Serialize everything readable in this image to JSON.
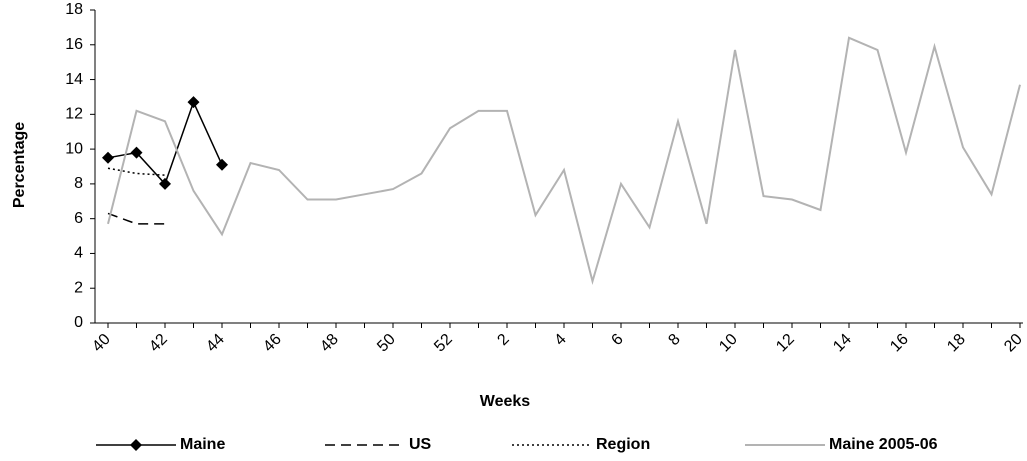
{
  "chart_data": {
    "type": "line",
    "xlabel": "Weeks",
    "ylabel": "Percentage",
    "categories": [
      "40",
      null,
      "42",
      null,
      "44",
      null,
      "46",
      null,
      "48",
      null,
      "50",
      null,
      "52",
      null,
      "2",
      null,
      "4",
      null,
      "6",
      null,
      "8",
      null,
      "10",
      null,
      "12",
      null,
      "14",
      null,
      "16",
      null,
      "18",
      null,
      "20"
    ],
    "series": [
      {
        "name": "Maine",
        "color": "#000000",
        "dash": "solid",
        "marker": "diamond",
        "values": [
          9.5,
          9.8,
          8.0,
          12.7,
          9.1,
          null,
          null,
          null,
          null,
          null,
          null,
          null,
          null,
          null,
          null,
          null,
          null,
          null,
          null,
          null,
          null,
          null,
          null,
          null,
          null,
          null,
          null,
          null,
          null,
          null,
          null,
          null,
          null
        ]
      },
      {
        "name": "US",
        "color": "#000000",
        "dash": "dashed",
        "values": [
          6.3,
          5.7,
          5.7,
          null,
          null,
          null,
          null,
          null,
          null,
          null,
          null,
          null,
          null,
          null,
          null,
          null,
          null,
          null,
          null,
          null,
          null,
          null,
          null,
          null,
          null,
          null,
          null,
          null,
          null,
          null,
          null,
          null,
          null
        ]
      },
      {
        "name": "Region",
        "color": "#000000",
        "dash": "dotted",
        "values": [
          8.9,
          8.6,
          8.5,
          null,
          null,
          null,
          null,
          null,
          null,
          null,
          null,
          null,
          null,
          null,
          null,
          null,
          null,
          null,
          null,
          null,
          null,
          null,
          null,
          null,
          null,
          null,
          null,
          null,
          null,
          null,
          null,
          null,
          null
        ]
      },
      {
        "name": "Maine 2005-06",
        "color": "#b3b3b3",
        "dash": "solid",
        "values": [
          5.7,
          12.2,
          11.6,
          7.6,
          5.1,
          9.2,
          8.8,
          7.1,
          7.1,
          7.4,
          7.7,
          8.6,
          11.2,
          12.2,
          12.2,
          6.2,
          8.8,
          2.4,
          8.0,
          5.5,
          11.6,
          5.7,
          15.7,
          7.3,
          7.1,
          6.5,
          16.4,
          15.7,
          9.8,
          15.9,
          10.1,
          7.4,
          13.7
        ]
      }
    ],
    "ylim": [
      0,
      18
    ],
    "yticks": [
      0,
      2,
      4,
      6,
      8,
      10,
      12,
      14,
      16,
      18
    ],
    "grid": false,
    "legend": "bottom"
  }
}
